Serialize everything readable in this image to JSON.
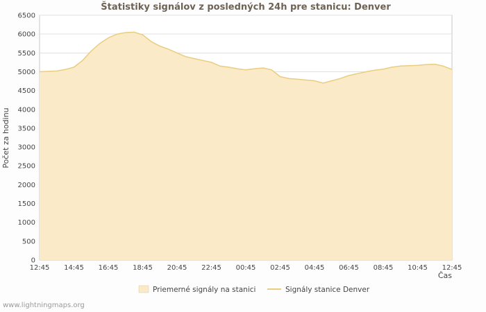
{
  "chart_data": {
    "type": "area",
    "title": "Štatistiky signálov z posledných 24h pre stanicu: Denver",
    "xlabel": "Čas",
    "ylabel": "Počet za hodinu",
    "ylim": [
      0,
      6500
    ],
    "y_ticks": [
      0,
      500,
      1000,
      1500,
      2000,
      2500,
      3000,
      3500,
      4000,
      4500,
      5000,
      5500,
      6000,
      6500
    ],
    "x_labels": [
      "12:45",
      "14:45",
      "16:45",
      "18:45",
      "20:45",
      "22:45",
      "00:45",
      "02:45",
      "04:45",
      "06:45",
      "08:45",
      "10:45",
      "12:45"
    ],
    "x_step_minutes": 30,
    "grid": true,
    "legend_position": "bottom",
    "values": [
      5000,
      5010,
      5020,
      5060,
      5120,
      5300,
      5550,
      5750,
      5900,
      6000,
      6040,
      6050,
      5980,
      5800,
      5680,
      5600,
      5500,
      5400,
      5350,
      5300,
      5250,
      5150,
      5120,
      5080,
      5050,
      5080,
      5100,
      5050,
      4870,
      4820,
      4800,
      4780,
      4760,
      4700,
      4760,
      4820,
      4900,
      4950,
      5000,
      5040,
      5070,
      5120,
      5150,
      5160,
      5170,
      5190,
      5200,
      5150,
      5060
    ],
    "series": [
      {
        "name": "Priemerné signály na stanici",
        "kind": "area",
        "color": "#faeac7"
      },
      {
        "name": "Signály stanice Denver",
        "kind": "line",
        "color": "#e9cd7f"
      }
    ]
  },
  "footer": {
    "watermark": "www.lightningmaps.org"
  }
}
